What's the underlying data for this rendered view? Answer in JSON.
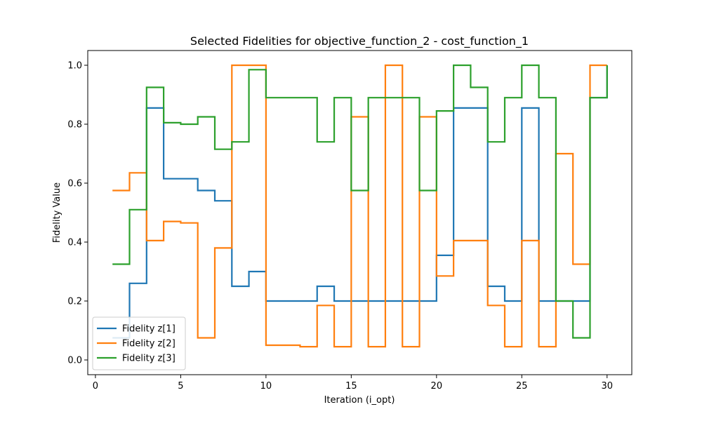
{
  "chart_data": {
    "type": "line",
    "style": "step-post",
    "title": "Selected Fidelities for objective_function_2 - cost_function_1",
    "xlabel": "Iteration (i_opt)",
    "ylabel": "Fidelity Value",
    "xlim": [
      -0.45,
      31.45
    ],
    "ylim": [
      -0.05,
      1.05
    ],
    "xticks": [
      0,
      5,
      10,
      15,
      20,
      25,
      30
    ],
    "yticks": [
      0.0,
      0.2,
      0.4,
      0.6,
      0.8,
      1.0
    ],
    "grid": false,
    "legend_position": "lower-left",
    "x": [
      1,
      2,
      3,
      4,
      5,
      6,
      7,
      8,
      9,
      10,
      11,
      12,
      13,
      14,
      15,
      16,
      17,
      18,
      19,
      20,
      21,
      22,
      23,
      24,
      25,
      26,
      27,
      28,
      29,
      30
    ],
    "series": [
      {
        "name": "Fidelity z[1]",
        "color": "#1f77b4",
        "values": [
          0.075,
          0.26,
          0.855,
          0.615,
          0.615,
          0.575,
          0.54,
          0.25,
          0.3,
          0.2,
          0.2,
          0.2,
          0.25,
          0.2,
          0.2,
          0.2,
          0.2,
          0.2,
          0.2,
          0.355,
          0.855,
          0.855,
          0.25,
          0.2,
          0.855,
          0.2,
          0.2,
          0.2,
          0.89,
          1.0
        ]
      },
      {
        "name": "Fidelity z[2]",
        "color": "#ff7f0e",
        "values": [
          0.575,
          0.635,
          0.405,
          0.47,
          0.465,
          0.075,
          0.38,
          1.0,
          1.0,
          0.05,
          0.05,
          0.045,
          0.185,
          0.045,
          0.825,
          0.045,
          1.0,
          0.045,
          0.825,
          0.285,
          0.405,
          0.405,
          0.185,
          0.045,
          0.405,
          0.045,
          0.7,
          0.325,
          1.0,
          1.0
        ]
      },
      {
        "name": "Fidelity z[3]",
        "color": "#2ca02c",
        "values": [
          0.325,
          0.51,
          0.925,
          0.805,
          0.8,
          0.825,
          0.715,
          0.74,
          0.985,
          0.89,
          0.89,
          0.89,
          0.74,
          0.89,
          0.575,
          0.89,
          0.89,
          0.89,
          0.575,
          0.845,
          1.0,
          0.925,
          0.74,
          0.89,
          1.0,
          0.89,
          0.2,
          0.075,
          0.89,
          1.0
        ]
      }
    ]
  }
}
